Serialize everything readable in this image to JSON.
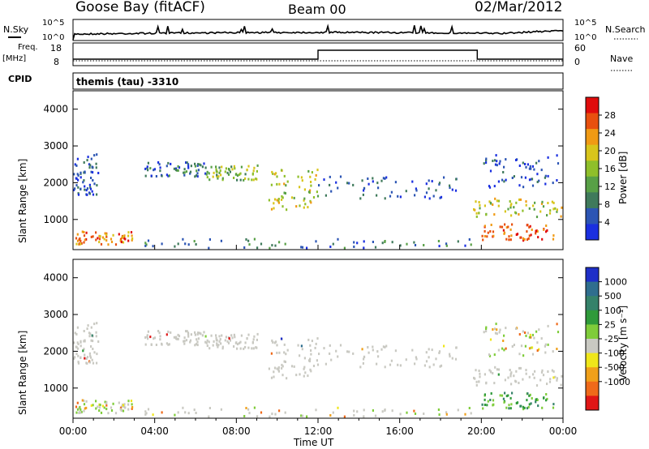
{
  "header": {
    "station": "Goose Bay (fitACF)",
    "beam": "Beam 00",
    "date": "02/Mar/2012"
  },
  "noise_panel": {
    "left_label": "N.Sky",
    "right_label": "N.Search",
    "left_ticks": [
      "10^5",
      "10^0"
    ],
    "right_ticks": [
      "10^5",
      "10^0"
    ]
  },
  "freq_panel": {
    "left_label_top": "Freq.",
    "left_label_bottom": "[MHz]",
    "right_label": "Nave",
    "left_ticks": [
      "18",
      "8"
    ],
    "right_ticks": [
      "60",
      "0"
    ]
  },
  "cpid": {
    "label": "CPID",
    "program": "themis (tau)  -3310"
  },
  "colors": {
    "power_scale": [
      "#1a2fe0",
      "#2c55b4",
      "#3f7a5b",
      "#58a046",
      "#8fbf2a",
      "#d8c51b",
      "#f09a14",
      "#e8500e",
      "#e00c0c"
    ],
    "velocity_scale": [
      "#1e2fc8",
      "#2f6e8e",
      "#35826a",
      "#2f9a3a",
      "#7fcc3a",
      "#c9c9c2",
      "#efe61a",
      "#f0a01a",
      "#ef6a1a",
      "#e01616"
    ],
    "ground_scatter": "#c9c9c2"
  },
  "chart_data": [
    {
      "type": "heatmap",
      "title": "",
      "xlabel": "Time UT",
      "ylabel": "Slant Range [km]",
      "x_ticks": [
        "00:00",
        "04:00",
        "08:00",
        "12:00",
        "16:00",
        "20:00",
        "00:00"
      ],
      "y_ticks": [
        "1000",
        "2000",
        "3000",
        "4000"
      ],
      "xlim_hours": [
        0,
        24
      ],
      "ylim_km": [
        180,
        4500
      ],
      "colorbar": {
        "label": "Power [dB]",
        "ticks": [
          "4",
          "8",
          "12",
          "16",
          "20",
          "24",
          "28"
        ],
        "range": [
          0,
          30
        ]
      },
      "echo_regions": [
        {
          "t0": 0.0,
          "t1": 1.2,
          "r0": 1700,
          "r1": 2800,
          "level": 0.15
        },
        {
          "t0": 3.5,
          "t1": 6.5,
          "r0": 2200,
          "r1": 2600,
          "level": 0.22
        },
        {
          "t0": 6.5,
          "t1": 9.0,
          "r0": 2100,
          "r1": 2500,
          "level": 0.45
        },
        {
          "t0": 9.5,
          "t1": 12.0,
          "r0": 1300,
          "r1": 2400,
          "level": 0.55
        },
        {
          "t0": 12.0,
          "t1": 19.0,
          "r0": 1600,
          "r1": 2200,
          "level": 0.12
        },
        {
          "t0": 19.5,
          "t1": 24.0,
          "r0": 1100,
          "r1": 1600,
          "level": 0.55
        },
        {
          "t0": 20.0,
          "t1": 24.0,
          "r0": 1900,
          "r1": 2800,
          "level": 0.12
        },
        {
          "t0": 20.0,
          "t1": 23.5,
          "r0": 450,
          "r1": 900,
          "level": 0.85
        },
        {
          "t0": 0.0,
          "t1": 3.0,
          "r0": 350,
          "r1": 700,
          "level": 0.75
        },
        {
          "t0": 3.0,
          "t1": 20.0,
          "r0": 250,
          "r1": 500,
          "level": 0.25
        }
      ]
    },
    {
      "type": "heatmap",
      "title": "",
      "xlabel": "Time UT",
      "ylabel": "Slant Range [km]",
      "x_ticks": [
        "00:00",
        "04:00",
        "08:00",
        "12:00",
        "16:00",
        "20:00",
        "00:00"
      ],
      "y_ticks": [
        "1000",
        "2000",
        "3000",
        "4000"
      ],
      "xlim_hours": [
        0,
        24
      ],
      "ylim_km": [
        180,
        4500
      ],
      "colorbar": {
        "label": "Velocity [m s⁻¹]",
        "ticks": [
          "1000",
          "500",
          "100",
          "25",
          "-25",
          "-100",
          "-500",
          "-1000"
        ],
        "range": [
          -1000,
          1000
        ]
      },
      "echo_regions": [
        {
          "t0": 0.0,
          "t1": 1.2,
          "r0": 1700,
          "r1": 2800,
          "kind": "ground"
        },
        {
          "t0": 3.5,
          "t1": 9.0,
          "r0": 2100,
          "r1": 2600,
          "kind": "ground"
        },
        {
          "t0": 9.5,
          "t1": 12.0,
          "r0": 1300,
          "r1": 2400,
          "kind": "ground"
        },
        {
          "t0": 12.0,
          "t1": 19.0,
          "r0": 1600,
          "r1": 2200,
          "kind": "ground"
        },
        {
          "t0": 19.5,
          "t1": 24.0,
          "r0": 1100,
          "r1": 1600,
          "kind": "ground"
        },
        {
          "t0": 20.0,
          "t1": 24.0,
          "r0": 1900,
          "r1": 2800,
          "kind": "ground"
        },
        {
          "t0": 20.0,
          "t1": 23.5,
          "r0": 450,
          "r1": 900,
          "kind": "mixed"
        },
        {
          "t0": 0.0,
          "t1": 3.0,
          "r0": 350,
          "r1": 700,
          "kind": "positive"
        },
        {
          "t0": 3.0,
          "t1": 20.0,
          "r0": 250,
          "r1": 500,
          "kind": "mixed"
        }
      ]
    }
  ]
}
